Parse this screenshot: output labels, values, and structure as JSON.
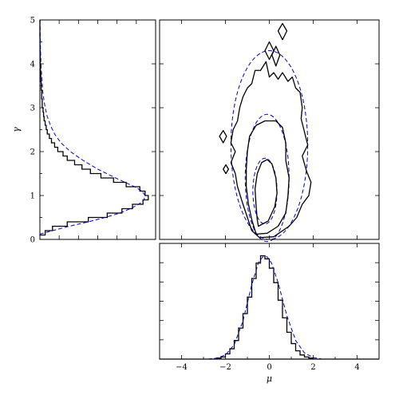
{
  "chart_data": [
    {
      "type": "histogram",
      "panel": "left-marginal-gamma",
      "orientation": "horizontal",
      "ylabel": "γ",
      "ylim": [
        0,
        5
      ],
      "xlim": [
        0,
        1.1
      ],
      "yticks": [
        "0",
        "1",
        "2",
        "3",
        "4",
        "5"
      ],
      "bin_edges": [
        0.1,
        0.2,
        0.3,
        0.4,
        0.5,
        0.6,
        0.7,
        0.8,
        0.9,
        1.0,
        1.1,
        1.2,
        1.3,
        1.4,
        1.5,
        1.6,
        1.7,
        1.8,
        1.9,
        2.0,
        2.1,
        2.2,
        2.3,
        2.4,
        2.5,
        2.6,
        2.7,
        2.8,
        2.9,
        3.0,
        3.2,
        3.4,
        3.6,
        3.8,
        4.0,
        4.3,
        4.6,
        5.0
      ],
      "density": [
        0.05,
        0.12,
        0.26,
        0.46,
        0.64,
        0.78,
        0.88,
        0.98,
        1.03,
        1.0,
        0.95,
        0.82,
        0.7,
        0.58,
        0.48,
        0.4,
        0.33,
        0.26,
        0.22,
        0.17,
        0.14,
        0.11,
        0.09,
        0.07,
        0.06,
        0.05,
        0.04,
        0.035,
        0.03,
        0.022,
        0.017,
        0.012,
        0.008,
        0.005,
        0.003,
        0.001,
        0.0
      ],
      "fit_curve": {
        "style": "dashed",
        "color": "#0000cc",
        "gamma": [
          0.12,
          0.2,
          0.3,
          0.4,
          0.5,
          0.6,
          0.7,
          0.8,
          0.9,
          1.0,
          1.1,
          1.2,
          1.4,
          1.6,
          1.8,
          2.0,
          2.2,
          2.4,
          2.6,
          2.8,
          3.0,
          3.3,
          3.6,
          4.0,
          4.5,
          5.0
        ],
        "density": [
          0.0,
          0.12,
          0.28,
          0.46,
          0.62,
          0.76,
          0.86,
          0.94,
          0.99,
          1.0,
          0.97,
          0.9,
          0.72,
          0.55,
          0.41,
          0.29,
          0.2,
          0.14,
          0.1,
          0.07,
          0.05,
          0.03,
          0.02,
          0.01,
          0.004,
          0.001
        ]
      }
    },
    {
      "type": "contour",
      "panel": "joint-mu-gamma",
      "xlim": [
        -5,
        5
      ],
      "ylim": [
        0,
        5
      ],
      "data_contours": [
        {
          "level": "inner",
          "points": [
            [
              -0.5,
              0.3
            ],
            [
              -0.05,
              0.42
            ],
            [
              0.25,
              0.75
            ],
            [
              0.35,
              1.05
            ],
            [
              0.3,
              1.4
            ],
            [
              0.12,
              1.72
            ],
            [
              -0.1,
              1.82
            ],
            [
              -0.35,
              1.75
            ],
            [
              -0.55,
              1.5
            ],
            [
              -0.65,
              1.15
            ],
            [
              -0.6,
              0.75
            ],
            [
              -0.55,
              0.45
            ],
            [
              -0.5,
              0.3
            ]
          ]
        },
        {
          "level": "middle",
          "points": [
            [
              -0.6,
              0.12
            ],
            [
              -0.1,
              0.14
            ],
            [
              0.4,
              0.3
            ],
            [
              0.75,
              0.6
            ],
            [
              0.85,
              1.0
            ],
            [
              0.9,
              1.4
            ],
            [
              0.75,
              1.8
            ],
            [
              0.75,
              2.2
            ],
            [
              0.6,
              2.55
            ],
            [
              0.3,
              2.7
            ],
            [
              -0.2,
              2.7
            ],
            [
              -0.6,
              2.6
            ],
            [
              -0.9,
              2.35
            ],
            [
              -1.0,
              2.0
            ],
            [
              -1.05,
              1.6
            ],
            [
              -1.05,
              1.2
            ],
            [
              -0.95,
              0.8
            ],
            [
              -0.8,
              0.45
            ],
            [
              -0.6,
              0.12
            ]
          ]
        },
        {
          "level": "outer",
          "points": [
            [
              -0.45,
              0.04
            ],
            [
              0.2,
              0.06
            ],
            [
              0.9,
              0.3
            ],
            [
              1.25,
              0.5
            ],
            [
              1.5,
              0.8
            ],
            [
              1.8,
              1.0
            ],
            [
              1.9,
              1.3
            ],
            [
              1.7,
              1.55
            ],
            [
              1.5,
              1.9
            ],
            [
              1.75,
              2.15
            ],
            [
              1.6,
              2.45
            ],
            [
              1.45,
              2.75
            ],
            [
              1.5,
              3.0
            ],
            [
              1.4,
              3.35
            ],
            [
              1.2,
              3.45
            ],
            [
              1.05,
              3.7
            ],
            [
              0.85,
              3.6
            ],
            [
              0.6,
              3.8
            ],
            [
              0.4,
              3.65
            ],
            [
              0.2,
              3.8
            ],
            [
              0.0,
              3.7
            ],
            [
              -0.15,
              4.05
            ],
            [
              -0.4,
              3.85
            ],
            [
              -0.65,
              3.85
            ],
            [
              -0.8,
              3.55
            ],
            [
              -1.0,
              3.45
            ],
            [
              -1.2,
              3.25
            ],
            [
              -1.35,
              3.0
            ],
            [
              -1.45,
              2.7
            ],
            [
              -1.65,
              2.5
            ],
            [
              -1.75,
              2.2
            ],
            [
              -1.55,
              2.0
            ],
            [
              -1.75,
              1.75
            ],
            [
              -1.55,
              1.5
            ],
            [
              -1.45,
              1.2
            ],
            [
              -1.2,
              0.8
            ],
            [
              -1.0,
              0.5
            ],
            [
              -0.8,
              0.2
            ],
            [
              -0.45,
              0.04
            ]
          ]
        },
        {
          "level": "outer-island",
          "points": [
            [
              0.6,
              4.55
            ],
            [
              0.4,
              4.75
            ],
            [
              0.6,
              4.92
            ],
            [
              0.8,
              4.75
            ],
            [
              0.6,
              4.55
            ]
          ]
        },
        {
          "level": "outer-island",
          "points": [
            [
              0.0,
              4.1
            ],
            [
              -0.2,
              4.3
            ],
            [
              0.0,
              4.5
            ],
            [
              0.2,
              4.3
            ],
            [
              0.0,
              4.1
            ]
          ]
        },
        {
          "level": "outer-island",
          "points": [
            [
              0.3,
              3.95
            ],
            [
              0.12,
              4.2
            ],
            [
              0.3,
              4.4
            ],
            [
              0.48,
              4.2
            ],
            [
              0.3,
              3.95
            ]
          ]
        },
        {
          "level": "outer-island",
          "points": [
            [
              -2.1,
              2.2
            ],
            [
              -2.27,
              2.35
            ],
            [
              -2.1,
              2.48
            ],
            [
              -1.95,
              2.35
            ],
            [
              -2.1,
              2.2
            ]
          ]
        },
        {
          "level": "outer-island",
          "points": [
            [
              -1.98,
              1.5
            ],
            [
              -2.1,
              1.6
            ],
            [
              -1.98,
              1.7
            ],
            [
              -1.86,
              1.6
            ],
            [
              -1.98,
              1.5
            ]
          ]
        }
      ],
      "fit_contours": [
        {
          "level": "inner",
          "center": [
            -0.2,
            1.1
          ],
          "radii": [
            0.55,
            0.75
          ],
          "style": "dashed",
          "color": "#0000cc"
        },
        {
          "level": "middle",
          "center": [
            -0.1,
            1.4
          ],
          "radii": [
            1.0,
            1.45
          ],
          "style": "dashed",
          "color": "#0000cc"
        },
        {
          "level": "outer",
          "center": [
            0.0,
            2.15
          ],
          "radii": [
            1.75,
            2.15
          ],
          "style": "dashed",
          "color": "#0000cc"
        }
      ]
    },
    {
      "type": "histogram",
      "panel": "bottom-marginal-mu",
      "orientation": "vertical",
      "xlabel": "μ",
      "xlim": [
        -5,
        5
      ],
      "xticks": [
        "−4",
        "−2",
        "0",
        "2",
        "4"
      ],
      "bin_edges": [
        -2.4,
        -2.2,
        -2.0,
        -1.8,
        -1.6,
        -1.4,
        -1.2,
        -1.0,
        -0.8,
        -0.6,
        -0.4,
        -0.2,
        0.0,
        0.2,
        0.4,
        0.6,
        0.8,
        1.0,
        1.2,
        1.4,
        1.6,
        1.8,
        2.0
      ],
      "density": [
        0.01,
        0.02,
        0.05,
        0.1,
        0.18,
        0.3,
        0.44,
        0.6,
        0.78,
        0.93,
        1.0,
        0.97,
        0.88,
        0.74,
        0.57,
        0.4,
        0.26,
        0.15,
        0.08,
        0.04,
        0.02,
        0.01
      ],
      "fit_curve": {
        "style": "dashed",
        "color": "#0000cc",
        "mu": [
          -2.8,
          -2.4,
          -2.0,
          -1.6,
          -1.2,
          -0.8,
          -0.5,
          -0.3,
          -0.1,
          0.1,
          0.4,
          0.8,
          1.2,
          1.6,
          2.0,
          2.4
        ],
        "density": [
          0.0,
          0.01,
          0.04,
          0.14,
          0.37,
          0.72,
          0.93,
          0.99,
          0.99,
          0.93,
          0.74,
          0.42,
          0.18,
          0.06,
          0.015,
          0.0
        ]
      }
    }
  ]
}
